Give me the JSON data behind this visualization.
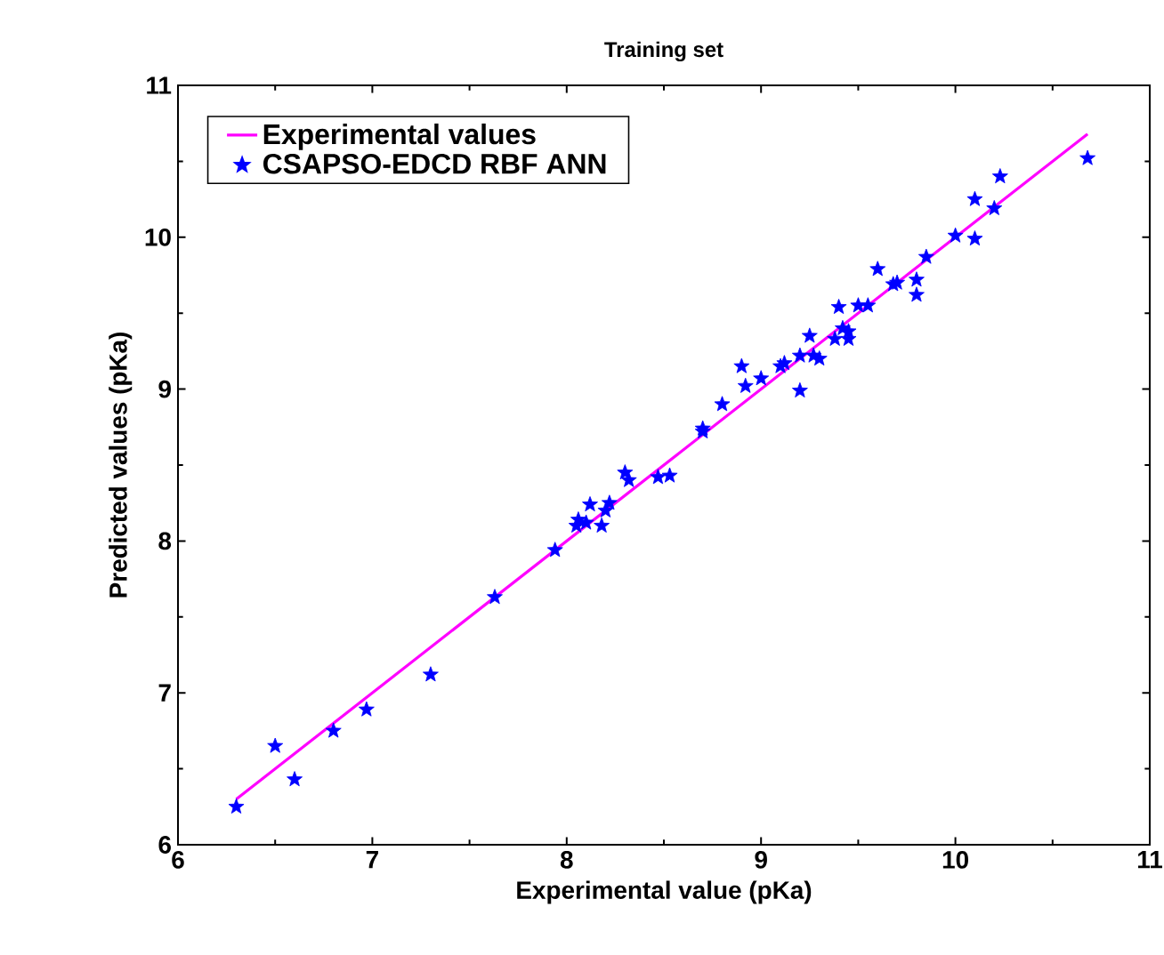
{
  "chart_data": {
    "type": "scatter",
    "title": "Training set",
    "xlabel": "Experimental value (pKa)",
    "ylabel": "Predicted values (pKa)",
    "xlim": [
      6,
      11
    ],
    "ylim": [
      6,
      11
    ],
    "xticks": [
      6,
      7,
      8,
      9,
      10,
      11
    ],
    "yticks": [
      6,
      7,
      8,
      9,
      10,
      11
    ],
    "legend": "top left",
    "grid": false,
    "series": [
      {
        "name": "Experimental values",
        "type": "line",
        "color": "#ff00ff",
        "marker": "none",
        "line_style": "solid",
        "x": [
          6.3,
          10.68
        ],
        "values": [
          6.3,
          10.68
        ]
      },
      {
        "name": "CSAPSO-EDCD RBF ANN",
        "color": "#0000ff",
        "marker": "star",
        "x": [
          6.3,
          6.5,
          6.6,
          6.8,
          6.97,
          7.3,
          7.63,
          7.94,
          8.05,
          8.06,
          8.1,
          8.12,
          8.18,
          8.2,
          8.22,
          8.3,
          8.32,
          8.47,
          8.53,
          8.7,
          8.7,
          8.8,
          8.9,
          8.92,
          9.0,
          9.1,
          9.12,
          9.2,
          9.2,
          9.25,
          9.27,
          9.3,
          9.38,
          9.4,
          9.42,
          9.45,
          9.45,
          9.5,
          9.55,
          9.6,
          9.68,
          9.7,
          9.8,
          9.8,
          9.85,
          10.0,
          10.1,
          10.1,
          10.2,
          10.23,
          10.68
        ],
        "values": [
          6.25,
          6.65,
          6.43,
          6.75,
          6.89,
          7.12,
          7.63,
          7.94,
          8.1,
          8.14,
          8.12,
          8.24,
          8.1,
          8.2,
          8.25,
          8.45,
          8.4,
          8.42,
          8.43,
          8.72,
          8.74,
          8.9,
          9.15,
          9.02,
          9.07,
          9.15,
          9.17,
          8.99,
          9.22,
          9.35,
          9.22,
          9.2,
          9.33,
          9.54,
          9.4,
          9.38,
          9.33,
          9.55,
          9.55,
          9.79,
          9.69,
          9.7,
          9.72,
          9.62,
          9.87,
          10.01,
          10.25,
          9.99,
          10.19,
          10.4,
          10.52
        ]
      }
    ]
  }
}
